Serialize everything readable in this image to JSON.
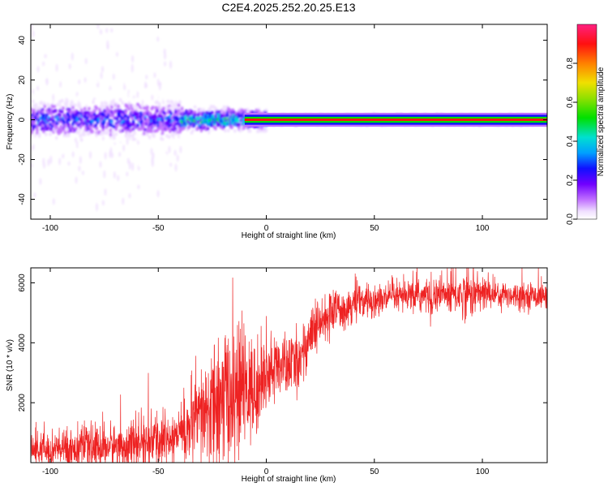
{
  "title": "C2E4.2025.252.20.25.E13",
  "colorbar": {
    "label": "Normalized spectral amplitude",
    "ticks": [
      "0.0",
      "0.2",
      "0.4",
      "0.6",
      "0.8"
    ]
  },
  "chart_data": [
    {
      "type": "heatmap",
      "name": "spectrogram",
      "xlabel": "Height of straight line (km)",
      "ylabel": "Frequency (Hz)",
      "xlim": [
        -109,
        130
      ],
      "ylim": [
        -50,
        48
      ],
      "xticks": [
        -100,
        -50,
        0,
        50,
        100
      ],
      "xtick_labels": [
        "-100",
        "-50",
        "0",
        "50",
        "100"
      ],
      "yticks": [
        -40,
        -20,
        0,
        20,
        40
      ],
      "ytick_labels": [
        "-40",
        "-20",
        "0",
        "20",
        "40"
      ],
      "band_center_hz": 0,
      "description_regions": [
        {
          "x_from": -109,
          "x_to": -40,
          "freq_spread_hz": 8,
          "peak_amplitude": 0.35
        },
        {
          "x_from": -40,
          "x_to": 0,
          "freq_spread_hz": 5,
          "peak_amplitude": 0.55
        },
        {
          "x_from": 0,
          "x_to": 130,
          "freq_spread_hz": 2,
          "peak_amplitude": 0.95
        }
      ]
    },
    {
      "type": "line",
      "name": "snr",
      "xlabel": "Height of straight line (km)",
      "ylabel": "SNR (10 * v/v)",
      "xlim": [
        -109,
        130
      ],
      "ylim": [
        0,
        6500
      ],
      "xticks": [
        -100,
        -50,
        0,
        50,
        100
      ],
      "xtick_labels": [
        "-100",
        "-50",
        "0",
        "50",
        "100"
      ],
      "yticks": [
        2000,
        4000,
        6000
      ],
      "ytick_labels": [
        "2000",
        "4000",
        "6000"
      ],
      "color": "#ee2222",
      "trend": {
        "x": [
          -109,
          -80,
          -60,
          -45,
          -35,
          -25,
          -15,
          -10,
          -5,
          0,
          5,
          10,
          15,
          20,
          25,
          30,
          40,
          60,
          80,
          100,
          130
        ],
        "y": [
          400,
          500,
          600,
          800,
          1200,
          1800,
          2300,
          2500,
          2300,
          3000,
          3200,
          3200,
          3400,
          4200,
          4600,
          5000,
          5300,
          5500,
          5600,
          5650,
          5550
        ]
      },
      "spread": {
        "x": [
          -109,
          -40,
          -20,
          -10,
          0,
          20,
          30,
          60,
          95,
          105,
          130
        ],
        "y": [
          350,
          600,
          1500,
          1300,
          700,
          600,
          450,
          300,
          500,
          300,
          250
        ]
      },
      "sample_count": 2400
    }
  ]
}
